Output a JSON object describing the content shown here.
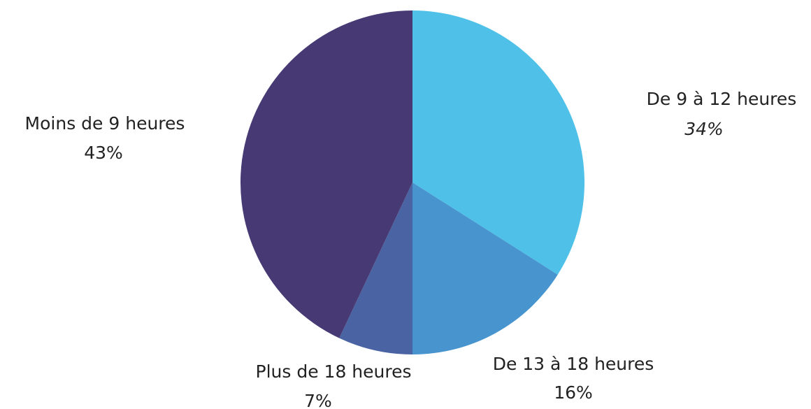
{
  "chart_data": {
    "type": "pie",
    "categories": [
      "De 9 à 12 heures",
      "De 13 à 18 heures",
      "Plus de 18 heures",
      "Moins de 9 heures"
    ],
    "values": [
      34,
      16,
      7,
      43
    ],
    "value_labels": [
      "34%",
      "16%",
      "7%",
      "43%"
    ],
    "colors": [
      "#4fc1e8",
      "#4794ce",
      "#4a64a3",
      "#463974"
    ]
  }
}
